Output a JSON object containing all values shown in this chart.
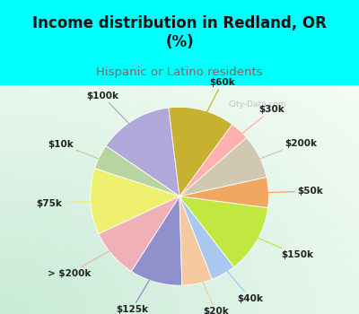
{
  "title": "Income distribution in Redland, OR\n(%)",
  "subtitle": "Hispanic or Latino residents",
  "background_top": "#00FFFF",
  "watermark": "City-Data.com",
  "labels": [
    "$100k",
    "$10k",
    "$75k",
    "> $200k",
    "$125k",
    "$20k",
    "$40k",
    "$150k",
    "$50k",
    "$200k",
    "$30k",
    "$60k"
  ],
  "sizes": [
    13.5,
    4.5,
    12.0,
    9.0,
    9.5,
    5.5,
    4.5,
    12.5,
    5.5,
    8.0,
    3.5,
    12.0
  ],
  "colors": [
    "#b0a8d8",
    "#b8d4a0",
    "#f0f070",
    "#f0b0b8",
    "#9090cc",
    "#f5c8a0",
    "#a8c8f0",
    "#c0e840",
    "#f0a860",
    "#d0c8b0",
    "#ffb0b0",
    "#c8b030"
  ],
  "startangle": 97,
  "label_fontsize": 7.5,
  "title_fontsize": 12,
  "subtitle_fontsize": 9.5,
  "title_color": "#111111",
  "subtitle_color": "#8b6060"
}
